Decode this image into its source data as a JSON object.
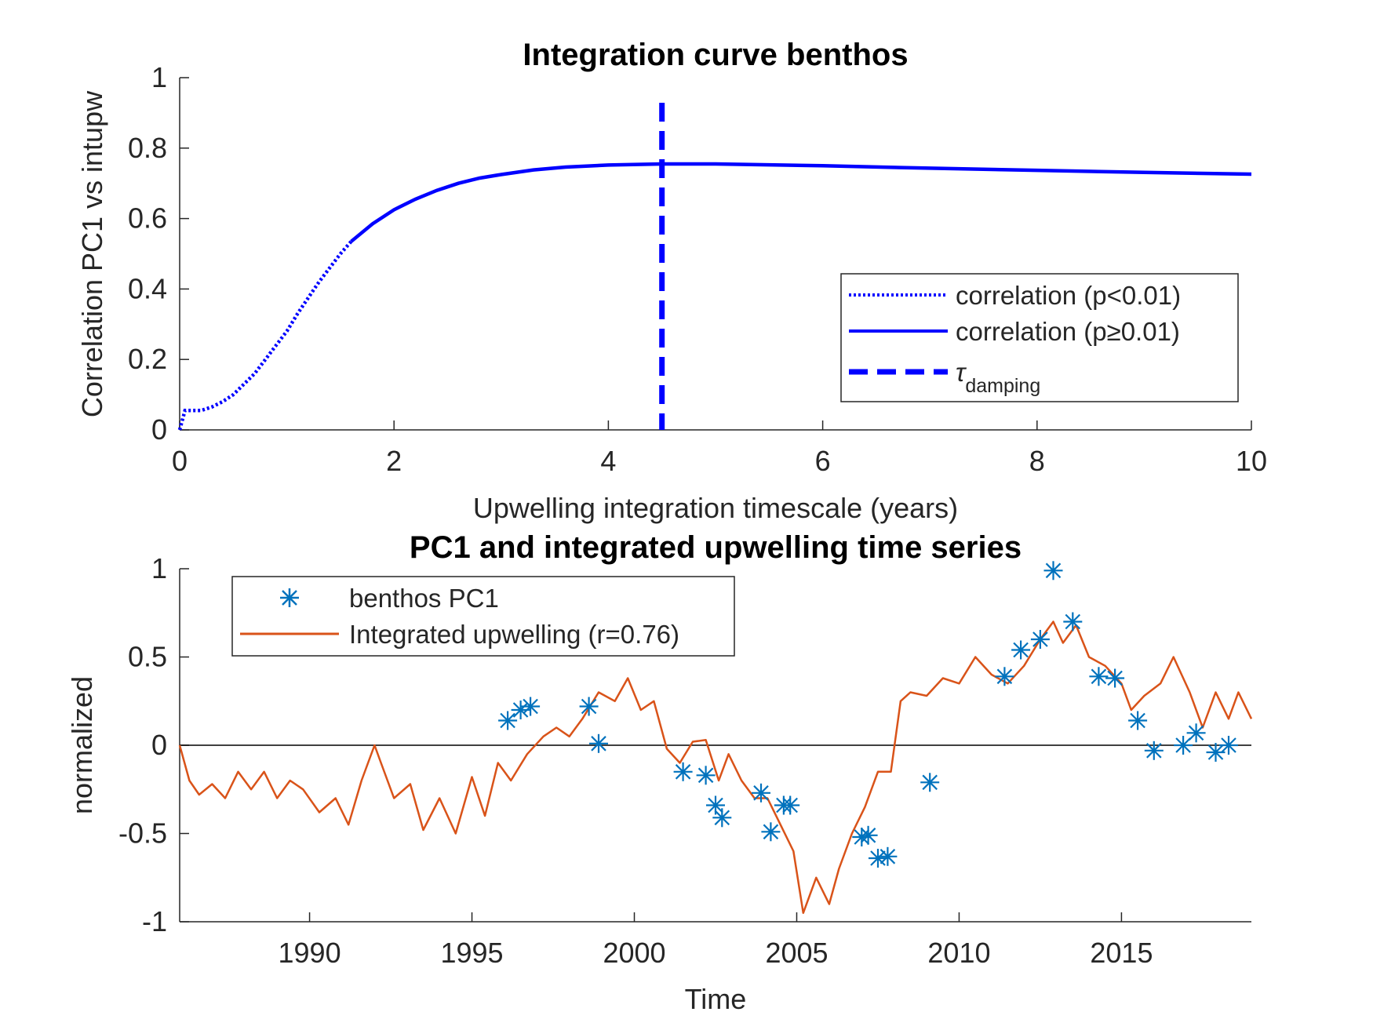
{
  "chart_data": [
    {
      "type": "line",
      "title": "Integration curve benthos",
      "xlabel": "Upwelling integration timescale (years)",
      "ylabel": "Correlation PC1 vs intupw",
      "xlim": [
        0,
        10
      ],
      "ylim": [
        0,
        1
      ],
      "xticks": [
        0,
        2,
        4,
        6,
        8,
        10
      ],
      "xtick_labels": [
        "0",
        "2",
        "4",
        "6",
        "8",
        "10"
      ],
      "yticks": [
        0,
        0.2,
        0.4,
        0.6,
        0.8,
        1
      ],
      "ytick_labels": [
        "0",
        "0.2",
        "0.4",
        "0.6",
        "0.8",
        "1"
      ],
      "grid": false,
      "legend_position": "bottom-right",
      "tau_damping": 4.5,
      "series": [
        {
          "name": "correlation (p<0.01)",
          "style": "dotted",
          "color": "#0000FF",
          "x": [
            0.0,
            0.05,
            0.1,
            0.2,
            0.3,
            0.4,
            0.5,
            0.6,
            0.7,
            0.8,
            0.9,
            1.0,
            1.1,
            1.2,
            1.3,
            1.4,
            1.5,
            1.6
          ],
          "y": [
            0.0,
            0.055,
            0.055,
            0.055,
            0.065,
            0.08,
            0.1,
            0.13,
            0.16,
            0.2,
            0.24,
            0.28,
            0.33,
            0.375,
            0.42,
            0.46,
            0.5,
            0.535
          ]
        },
        {
          "name": "correlation (p≥0.01)",
          "style": "solid",
          "color": "#0000FF",
          "x": [
            1.6,
            1.8,
            2.0,
            2.2,
            2.4,
            2.6,
            2.8,
            3.0,
            3.3,
            3.6,
            4.0,
            4.5,
            5.0,
            6.0,
            7.0,
            8.0,
            9.0,
            10.0
          ],
          "y": [
            0.535,
            0.585,
            0.625,
            0.655,
            0.68,
            0.7,
            0.715,
            0.725,
            0.738,
            0.746,
            0.752,
            0.755,
            0.755,
            0.75,
            0.743,
            0.737,
            0.731,
            0.726
          ]
        }
      ],
      "legend": [
        {
          "label": "correlation (p<0.01)",
          "style": "dotted"
        },
        {
          "label": "correlation (p≥0.01)",
          "style": "solid"
        },
        {
          "label": "τ",
          "subscript": "damping",
          "style": "dashed"
        }
      ]
    },
    {
      "type": "line",
      "title": "PC1 and integrated upwelling time series",
      "xlabel": "Time",
      "ylabel": "normalized",
      "xlim": [
        1986,
        2019
      ],
      "ylim": [
        -1,
        1
      ],
      "xticks": [
        1990,
        1995,
        2000,
        2005,
        2010,
        2015
      ],
      "xtick_labels": [
        "1990",
        "1995",
        "2000",
        "2005",
        "2010",
        "2015"
      ],
      "yticks": [
        -1,
        -0.5,
        0,
        0.5,
        1
      ],
      "ytick_labels": [
        "-1",
        "-0.5",
        "0",
        "0.5",
        "1"
      ],
      "grid": false,
      "legend_position": "top-left",
      "zero_line": true,
      "series": [
        {
          "name": "benthos PC1",
          "type": "scatter",
          "marker": "*",
          "color": "#0072BD",
          "x": [
            1996.1,
            1996.5,
            1996.8,
            1998.6,
            1998.9,
            2001.5,
            2002.2,
            2002.5,
            2002.7,
            2003.9,
            2004.2,
            2004.6,
            2004.8,
            2007.0,
            2007.2,
            2007.5,
            2007.8,
            2009.1,
            2011.4,
            2011.9,
            2012.5,
            2012.9,
            2013.5,
            2014.3,
            2014.8,
            2015.5,
            2016.0,
            2016.9,
            2017.3,
            2017.9,
            2018.3
          ],
          "y": [
            0.14,
            0.2,
            0.22,
            0.22,
            0.01,
            -0.15,
            -0.17,
            -0.34,
            -0.41,
            -0.27,
            -0.49,
            -0.34,
            -0.34,
            -0.52,
            -0.51,
            -0.64,
            -0.63,
            -0.21,
            0.39,
            0.54,
            0.6,
            0.99,
            0.7,
            0.39,
            0.38,
            0.14,
            -0.03,
            0.0,
            0.07,
            -0.04,
            0.0
          ]
        },
        {
          "name": "Integrated upwelling (r=0.76)",
          "type": "line",
          "color": "#D95319",
          "x": [
            1986.0,
            1986.3,
            1986.6,
            1987.0,
            1987.4,
            1987.8,
            1988.2,
            1988.6,
            1989.0,
            1989.4,
            1989.8,
            1990.3,
            1990.8,
            1991.2,
            1991.6,
            1992.0,
            1992.2,
            1992.6,
            1993.1,
            1993.5,
            1994.0,
            1994.5,
            1995.0,
            1995.4,
            1995.8,
            1996.2,
            1996.7,
            1997.2,
            1997.6,
            1998.0,
            1998.4,
            1998.9,
            1999.4,
            1999.8,
            2000.2,
            2000.6,
            2001.0,
            2001.4,
            2001.8,
            2002.2,
            2002.6,
            2002.9,
            2003.3,
            2003.7,
            2004.1,
            2004.5,
            2004.9,
            2005.2,
            2005.6,
            2006.0,
            2006.3,
            2006.7,
            2007.1,
            2007.5,
            2007.9,
            2008.2,
            2008.5,
            2009.0,
            2009.5,
            2010.0,
            2010.5,
            2011.0,
            2011.5,
            2012.0,
            2012.5,
            2012.9,
            2013.2,
            2013.6,
            2014.0,
            2014.5,
            2015.0,
            2015.3,
            2015.7,
            2016.2,
            2016.6,
            2017.1,
            2017.5,
            2017.9,
            2018.3,
            2018.6,
            2019.0
          ],
          "y": [
            0.0,
            -0.2,
            -0.28,
            -0.22,
            -0.3,
            -0.15,
            -0.25,
            -0.15,
            -0.3,
            -0.2,
            -0.25,
            -0.38,
            -0.3,
            -0.45,
            -0.2,
            0.0,
            -0.1,
            -0.3,
            -0.22,
            -0.48,
            -0.3,
            -0.5,
            -0.18,
            -0.4,
            -0.1,
            -0.2,
            -0.05,
            0.05,
            0.1,
            0.05,
            0.15,
            0.3,
            0.25,
            0.38,
            0.2,
            0.25,
            -0.02,
            -0.1,
            0.02,
            0.03,
            -0.2,
            -0.05,
            -0.2,
            -0.3,
            -0.3,
            -0.45,
            -0.6,
            -0.95,
            -0.75,
            -0.9,
            -0.7,
            -0.5,
            -0.35,
            -0.15,
            -0.15,
            0.25,
            0.3,
            0.28,
            0.38,
            0.35,
            0.5,
            0.4,
            0.35,
            0.45,
            0.6,
            0.7,
            0.58,
            0.68,
            0.5,
            0.45,
            0.35,
            0.2,
            0.28,
            0.35,
            0.5,
            0.3,
            0.1,
            0.3,
            0.15,
            0.3,
            0.15
          ]
        }
      ],
      "legend": [
        {
          "label": "benthos PC1",
          "style": "marker"
        },
        {
          "label": "Integrated upwelling (r=0.76)",
          "style": "solid"
        }
      ]
    }
  ]
}
